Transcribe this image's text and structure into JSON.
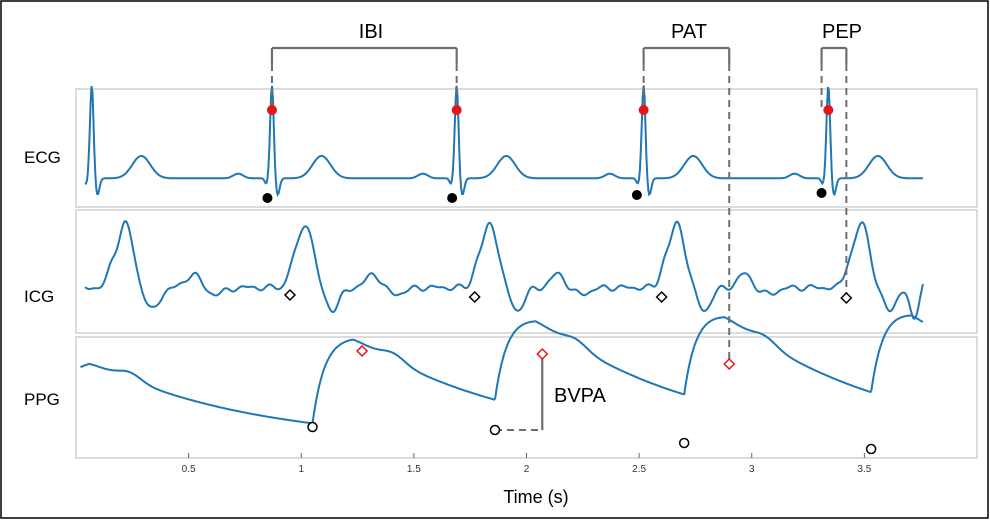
{
  "chart_data": {
    "type": "line",
    "xlabel": "Time (s)",
    "xlim": [
      0,
      4.0
    ],
    "x_ticks": [
      0.5,
      1,
      1.5,
      2,
      2.5,
      3,
      3.5
    ],
    "x_tick_labels": [
      "0.5",
      "1",
      "1.5",
      "2",
      "2.5",
      "3",
      "3.5"
    ],
    "grid": false,
    "colors": {
      "signal": "#1f77b4",
      "r_peak": "#e8141a",
      "q_onset": "#000000",
      "annotation": "#6e6e6e"
    },
    "panels": [
      {
        "id": "ecg",
        "label": "ECG"
      },
      {
        "id": "icg",
        "label": "ICG"
      },
      {
        "id": "ppg",
        "label": "PPG"
      }
    ],
    "markers": {
      "ecg_r_peaks": [
        0.87,
        1.69,
        2.52,
        3.34
      ],
      "ecg_q_onsets": [
        0.85,
        1.67,
        2.49,
        3.31
      ],
      "icg_b_points": [
        0.95,
        1.77,
        2.6,
        3.42
      ],
      "ppg_peaks": [
        1.27,
        2.07,
        2.9
      ],
      "ppg_feet": [
        1.05,
        1.86,
        2.7,
        3.53
      ]
    },
    "annotations": [
      {
        "label": "IBI",
        "from": 0.87,
        "to": 1.69,
        "start_panel": "ecg",
        "end_panel": "ecg"
      },
      {
        "label": "PAT",
        "from": 2.52,
        "to": 2.9,
        "start_panel": "ecg",
        "end_panel": "ppg"
      },
      {
        "label": "PEP",
        "from": 3.31,
        "to": 3.42,
        "start_panel": "ecg",
        "end_panel": "icg"
      },
      {
        "label": "BVPA",
        "at": 2.07,
        "from": 1.86
      }
    ]
  }
}
